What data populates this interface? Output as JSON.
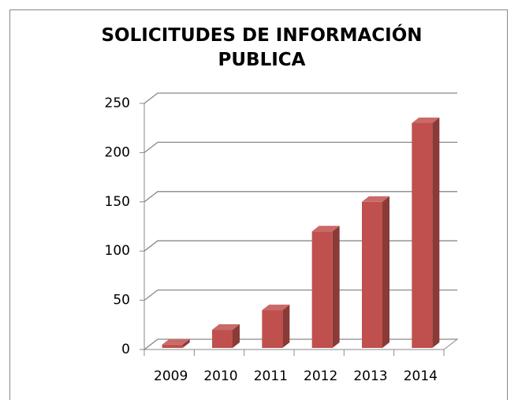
{
  "chart_data": {
    "type": "bar3d",
    "title": "SOLICITUDES DE INFORMACIÓN PUBLICA",
    "categories": [
      "2009",
      "2010",
      "2011",
      "2012",
      "2013",
      "2014"
    ],
    "values": [
      5,
      20,
      40,
      120,
      150,
      230
    ],
    "color": "#c0504d",
    "ylim": [
      0,
      250
    ],
    "yticks": [
      0,
      50,
      100,
      150,
      200,
      250
    ],
    "grid": true
  }
}
